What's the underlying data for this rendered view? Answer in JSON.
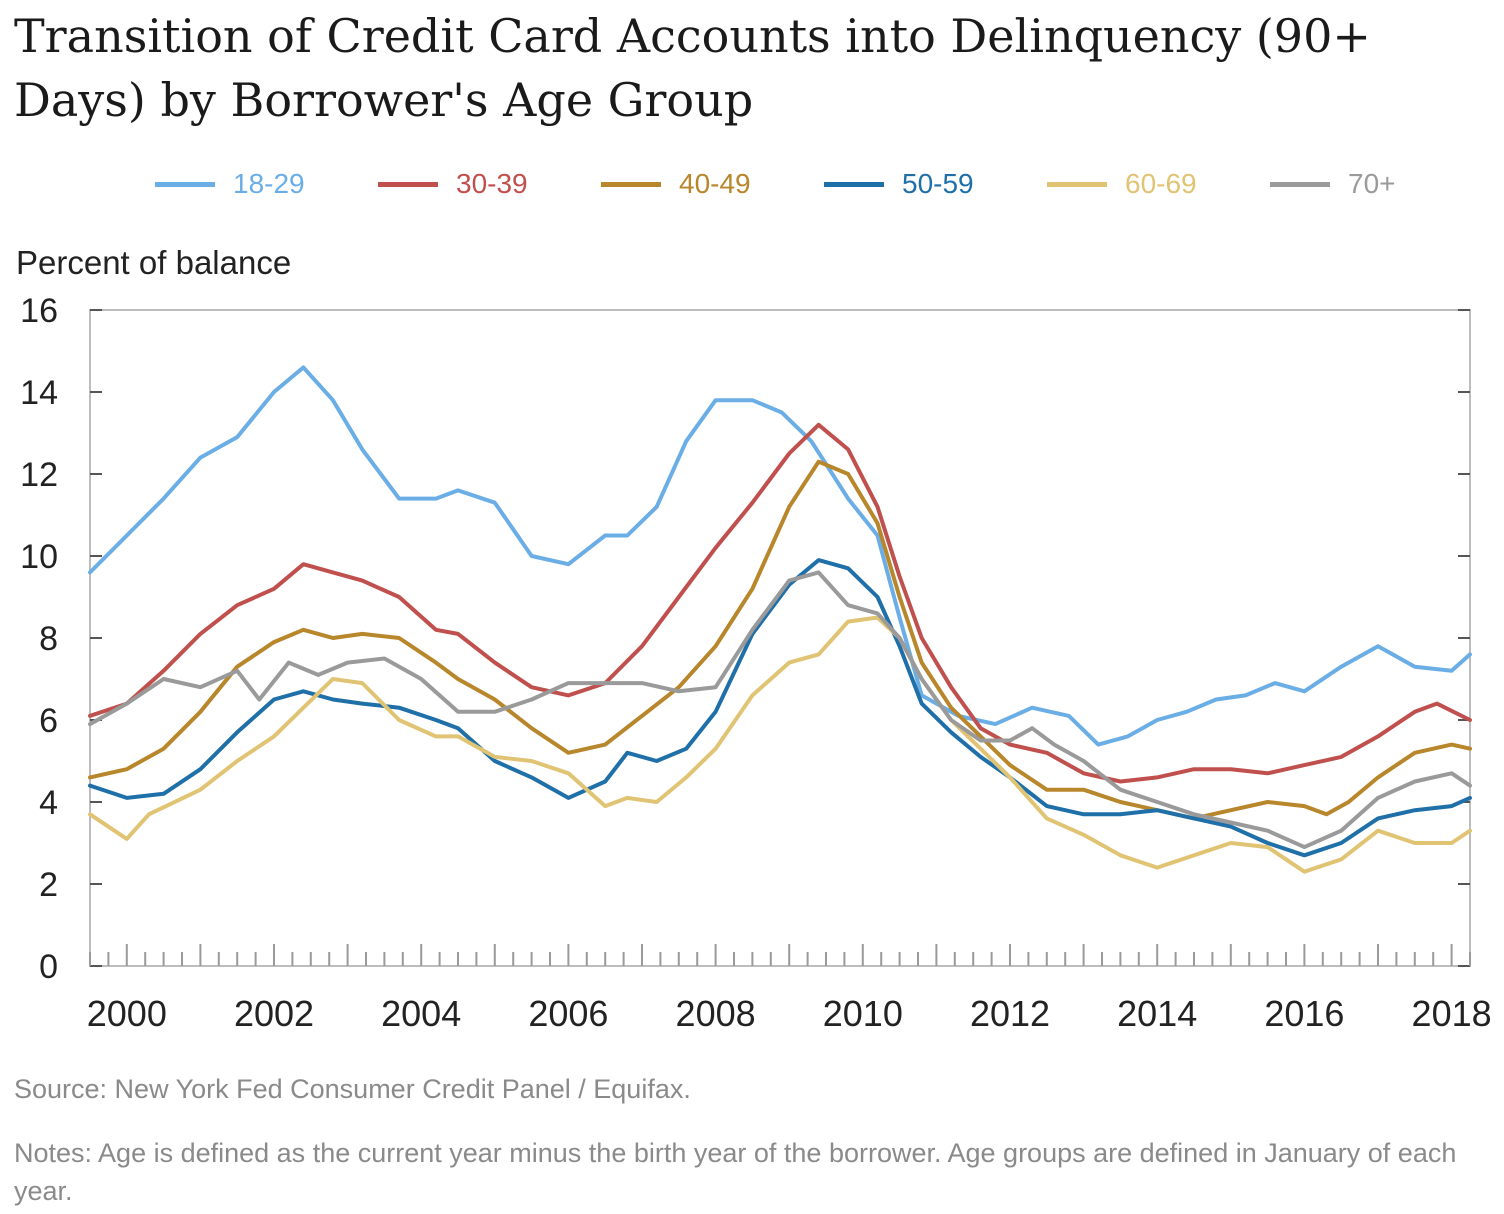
{
  "chart_data": {
    "type": "line",
    "title": "Transition of Credit Card Accounts into Delinquency (90+ Days) by Borrower's Age Group",
    "ylabel": "Percent of balance",
    "xlabel": "",
    "xlim": [
      1999.5,
      2018.25
    ],
    "ylim": [
      0,
      16
    ],
    "yticks": [
      "0",
      "2",
      "4",
      "6",
      "8",
      "10",
      "12",
      "14",
      "16"
    ],
    "xticks": [
      "2000",
      "2002",
      "2004",
      "2006",
      "2008",
      "2010",
      "2012",
      "2014",
      "2016",
      "2018"
    ],
    "legend_position": "top",
    "grid": false,
    "series": [
      {
        "name": "18-29",
        "color": "#6baee6",
        "points": [
          [
            1999.5,
            9.6
          ],
          [
            2000,
            10.5
          ],
          [
            2000.5,
            11.4
          ],
          [
            2001,
            12.4
          ],
          [
            2001.5,
            12.9
          ],
          [
            2002,
            14.0
          ],
          [
            2002.4,
            14.6
          ],
          [
            2002.8,
            13.8
          ],
          [
            2003.2,
            12.6
          ],
          [
            2003.7,
            11.4
          ],
          [
            2004.2,
            11.4
          ],
          [
            2004.5,
            11.6
          ],
          [
            2005,
            11.3
          ],
          [
            2005.5,
            10.0
          ],
          [
            2006,
            9.8
          ],
          [
            2006.5,
            10.5
          ],
          [
            2006.8,
            10.5
          ],
          [
            2007.2,
            11.2
          ],
          [
            2007.6,
            12.8
          ],
          [
            2008,
            13.8
          ],
          [
            2008.5,
            13.8
          ],
          [
            2008.9,
            13.5
          ],
          [
            2009.3,
            12.8
          ],
          [
            2009.8,
            11.4
          ],
          [
            2010.2,
            10.5
          ],
          [
            2010.5,
            8.5
          ],
          [
            2010.8,
            6.6
          ],
          [
            2011.3,
            6.1
          ],
          [
            2011.8,
            5.9
          ],
          [
            2012.3,
            6.3
          ],
          [
            2012.8,
            6.1
          ],
          [
            2013.2,
            5.4
          ],
          [
            2013.6,
            5.6
          ],
          [
            2014,
            6.0
          ],
          [
            2014.4,
            6.2
          ],
          [
            2014.8,
            6.5
          ],
          [
            2015.2,
            6.6
          ],
          [
            2015.6,
            6.9
          ],
          [
            2016,
            6.7
          ],
          [
            2016.5,
            7.3
          ],
          [
            2017,
            7.8
          ],
          [
            2017.5,
            7.3
          ],
          [
            2018,
            7.2
          ],
          [
            2018.25,
            7.6
          ]
        ]
      },
      {
        "name": "30-39",
        "color": "#c0504d",
        "points": [
          [
            1999.5,
            6.1
          ],
          [
            2000,
            6.4
          ],
          [
            2000.5,
            7.2
          ],
          [
            2001,
            8.1
          ],
          [
            2001.5,
            8.8
          ],
          [
            2002,
            9.2
          ],
          [
            2002.4,
            9.8
          ],
          [
            2002.8,
            9.6
          ],
          [
            2003.2,
            9.4
          ],
          [
            2003.7,
            9.0
          ],
          [
            2004.2,
            8.2
          ],
          [
            2004.5,
            8.1
          ],
          [
            2005,
            7.4
          ],
          [
            2005.5,
            6.8
          ],
          [
            2006,
            6.6
          ],
          [
            2006.5,
            6.9
          ],
          [
            2007,
            7.8
          ],
          [
            2007.5,
            9.0
          ],
          [
            2008,
            10.2
          ],
          [
            2008.5,
            11.3
          ],
          [
            2009,
            12.5
          ],
          [
            2009.4,
            13.2
          ],
          [
            2009.8,
            12.6
          ],
          [
            2010.2,
            11.2
          ],
          [
            2010.5,
            9.5
          ],
          [
            2010.8,
            8.0
          ],
          [
            2011.2,
            6.8
          ],
          [
            2011.6,
            5.8
          ],
          [
            2012,
            5.4
          ],
          [
            2012.5,
            5.2
          ],
          [
            2013,
            4.7
          ],
          [
            2013.5,
            4.5
          ],
          [
            2014,
            4.6
          ],
          [
            2014.5,
            4.8
          ],
          [
            2015,
            4.8
          ],
          [
            2015.5,
            4.7
          ],
          [
            2016,
            4.9
          ],
          [
            2016.5,
            5.1
          ],
          [
            2017,
            5.6
          ],
          [
            2017.5,
            6.2
          ],
          [
            2017.8,
            6.4
          ],
          [
            2018.25,
            6.0
          ]
        ]
      },
      {
        "name": "40-49",
        "color": "#b8862b",
        "points": [
          [
            1999.5,
            4.6
          ],
          [
            2000,
            4.8
          ],
          [
            2000.5,
            5.3
          ],
          [
            2001,
            6.2
          ],
          [
            2001.5,
            7.3
          ],
          [
            2002,
            7.9
          ],
          [
            2002.4,
            8.2
          ],
          [
            2002.8,
            8.0
          ],
          [
            2003.2,
            8.1
          ],
          [
            2003.7,
            8.0
          ],
          [
            2004.2,
            7.4
          ],
          [
            2004.5,
            7.0
          ],
          [
            2005,
            6.5
          ],
          [
            2005.5,
            5.8
          ],
          [
            2006,
            5.2
          ],
          [
            2006.5,
            5.4
          ],
          [
            2007,
            6.1
          ],
          [
            2007.5,
            6.8
          ],
          [
            2008,
            7.8
          ],
          [
            2008.5,
            9.2
          ],
          [
            2009,
            11.2
          ],
          [
            2009.4,
            12.3
          ],
          [
            2009.8,
            12.0
          ],
          [
            2010.2,
            10.8
          ],
          [
            2010.5,
            9.0
          ],
          [
            2010.8,
            7.4
          ],
          [
            2011.2,
            6.3
          ],
          [
            2011.6,
            5.6
          ],
          [
            2012,
            4.9
          ],
          [
            2012.5,
            4.3
          ],
          [
            2013,
            4.3
          ],
          [
            2013.5,
            4.0
          ],
          [
            2014,
            3.8
          ],
          [
            2014.5,
            3.6
          ],
          [
            2015,
            3.8
          ],
          [
            2015.5,
            4.0
          ],
          [
            2016,
            3.9
          ],
          [
            2016.3,
            3.7
          ],
          [
            2016.6,
            4.0
          ],
          [
            2017,
            4.6
          ],
          [
            2017.5,
            5.2
          ],
          [
            2018,
            5.4
          ],
          [
            2018.25,
            5.3
          ]
        ]
      },
      {
        "name": "50-59",
        "color": "#1f6fa8",
        "points": [
          [
            1999.5,
            4.4
          ],
          [
            2000,
            4.1
          ],
          [
            2000.5,
            4.2
          ],
          [
            2001,
            4.8
          ],
          [
            2001.5,
            5.7
          ],
          [
            2002,
            6.5
          ],
          [
            2002.4,
            6.7
          ],
          [
            2002.8,
            6.5
          ],
          [
            2003.2,
            6.4
          ],
          [
            2003.7,
            6.3
          ],
          [
            2004.2,
            6.0
          ],
          [
            2004.5,
            5.8
          ],
          [
            2005,
            5.0
          ],
          [
            2005.5,
            4.6
          ],
          [
            2006,
            4.1
          ],
          [
            2006.5,
            4.5
          ],
          [
            2006.8,
            5.2
          ],
          [
            2007.2,
            5.0
          ],
          [
            2007.6,
            5.3
          ],
          [
            2008,
            6.2
          ],
          [
            2008.5,
            8.1
          ],
          [
            2009,
            9.3
          ],
          [
            2009.4,
            9.9
          ],
          [
            2009.8,
            9.7
          ],
          [
            2010.2,
            9.0
          ],
          [
            2010.5,
            7.8
          ],
          [
            2010.8,
            6.4
          ],
          [
            2011.2,
            5.7
          ],
          [
            2011.6,
            5.1
          ],
          [
            2012,
            4.6
          ],
          [
            2012.5,
            3.9
          ],
          [
            2013,
            3.7
          ],
          [
            2013.5,
            3.7
          ],
          [
            2014,
            3.8
          ],
          [
            2014.5,
            3.6
          ],
          [
            2015,
            3.4
          ],
          [
            2015.5,
            3.0
          ],
          [
            2016,
            2.7
          ],
          [
            2016.5,
            3.0
          ],
          [
            2017,
            3.6
          ],
          [
            2017.5,
            3.8
          ],
          [
            2018,
            3.9
          ],
          [
            2018.25,
            4.1
          ]
        ]
      },
      {
        "name": "60-69",
        "color": "#e0c474",
        "points": [
          [
            1999.5,
            3.7
          ],
          [
            2000,
            3.1
          ],
          [
            2000.3,
            3.7
          ],
          [
            2001,
            4.3
          ],
          [
            2001.5,
            5.0
          ],
          [
            2002,
            5.6
          ],
          [
            2002.4,
            6.3
          ],
          [
            2002.8,
            7.0
          ],
          [
            2003.2,
            6.9
          ],
          [
            2003.7,
            6.0
          ],
          [
            2004.2,
            5.6
          ],
          [
            2004.5,
            5.6
          ],
          [
            2005,
            5.1
          ],
          [
            2005.5,
            5.0
          ],
          [
            2006,
            4.7
          ],
          [
            2006.5,
            3.9
          ],
          [
            2006.8,
            4.1
          ],
          [
            2007.2,
            4.0
          ],
          [
            2007.6,
            4.6
          ],
          [
            2008,
            5.3
          ],
          [
            2008.5,
            6.6
          ],
          [
            2009,
            7.4
          ],
          [
            2009.4,
            7.6
          ],
          [
            2009.8,
            8.4
          ],
          [
            2010.2,
            8.5
          ],
          [
            2010.5,
            8.0
          ],
          [
            2010.8,
            7.0
          ],
          [
            2011.2,
            6.0
          ],
          [
            2011.6,
            5.3
          ],
          [
            2012,
            4.6
          ],
          [
            2012.5,
            3.6
          ],
          [
            2013,
            3.2
          ],
          [
            2013.5,
            2.7
          ],
          [
            2014,
            2.4
          ],
          [
            2014.5,
            2.7
          ],
          [
            2015,
            3.0
          ],
          [
            2015.5,
            2.9
          ],
          [
            2016,
            2.3
          ],
          [
            2016.5,
            2.6
          ],
          [
            2017,
            3.3
          ],
          [
            2017.5,
            3.0
          ],
          [
            2018,
            3.0
          ],
          [
            2018.25,
            3.3
          ]
        ]
      },
      {
        "name": "70+",
        "color": "#9a9a9a",
        "points": [
          [
            1999.5,
            5.9
          ],
          [
            2000,
            6.4
          ],
          [
            2000.5,
            7.0
          ],
          [
            2001,
            6.8
          ],
          [
            2001.5,
            7.2
          ],
          [
            2001.8,
            6.5
          ],
          [
            2002.2,
            7.4
          ],
          [
            2002.6,
            7.1
          ],
          [
            2003,
            7.4
          ],
          [
            2003.5,
            7.5
          ],
          [
            2004,
            7.0
          ],
          [
            2004.5,
            6.2
          ],
          [
            2005,
            6.2
          ],
          [
            2005.5,
            6.5
          ],
          [
            2006,
            6.9
          ],
          [
            2006.5,
            6.9
          ],
          [
            2007,
            6.9
          ],
          [
            2007.5,
            6.7
          ],
          [
            2008,
            6.8
          ],
          [
            2008.5,
            8.2
          ],
          [
            2009,
            9.4
          ],
          [
            2009.4,
            9.6
          ],
          [
            2009.8,
            8.8
          ],
          [
            2010.2,
            8.6
          ],
          [
            2010.5,
            8.0
          ],
          [
            2010.8,
            7.0
          ],
          [
            2011.2,
            6.0
          ],
          [
            2011.6,
            5.5
          ],
          [
            2012,
            5.5
          ],
          [
            2012.3,
            5.8
          ],
          [
            2012.6,
            5.4
          ],
          [
            2013,
            5.0
          ],
          [
            2013.5,
            4.3
          ],
          [
            2014,
            4.0
          ],
          [
            2014.5,
            3.7
          ],
          [
            2015,
            3.5
          ],
          [
            2015.5,
            3.3
          ],
          [
            2016,
            2.9
          ],
          [
            2016.5,
            3.3
          ],
          [
            2017,
            4.1
          ],
          [
            2017.5,
            4.5
          ],
          [
            2018,
            4.7
          ],
          [
            2018.25,
            4.4
          ]
        ]
      }
    ],
    "source": "Source: New York Fed Consumer Credit Panel / Equifax.",
    "notes": "Notes: Age is defined as the current year minus the birth year of the borrower. Age groups are defined in January of each year."
  }
}
